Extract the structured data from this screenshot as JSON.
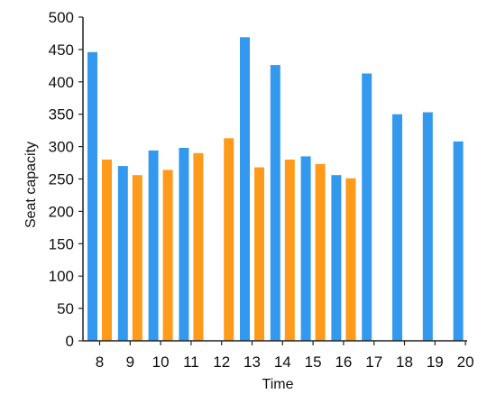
{
  "chart_data": {
    "type": "bar",
    "title": "",
    "xlabel": "Time",
    "ylabel": "Seat capacity",
    "ylim": [
      0,
      500
    ],
    "yticks": [
      0,
      50,
      100,
      150,
      200,
      250,
      300,
      350,
      400,
      450,
      500
    ],
    "categories": [
      "8",
      "9",
      "10",
      "11",
      "12",
      "13",
      "14",
      "15",
      "16",
      "17",
      "18",
      "19",
      "20"
    ],
    "legend": "none",
    "grid": false,
    "series": [
      {
        "color": "#3399ee",
        "values": [
          446,
          270,
          294,
          298,
          null,
          469,
          426,
          285,
          256,
          413,
          350,
          353,
          308
        ]
      },
      {
        "color": "#ff9a1a",
        "values": [
          280,
          256,
          264,
          290,
          313,
          268,
          280,
          273,
          251,
          null,
          null,
          null,
          null
        ]
      }
    ]
  }
}
